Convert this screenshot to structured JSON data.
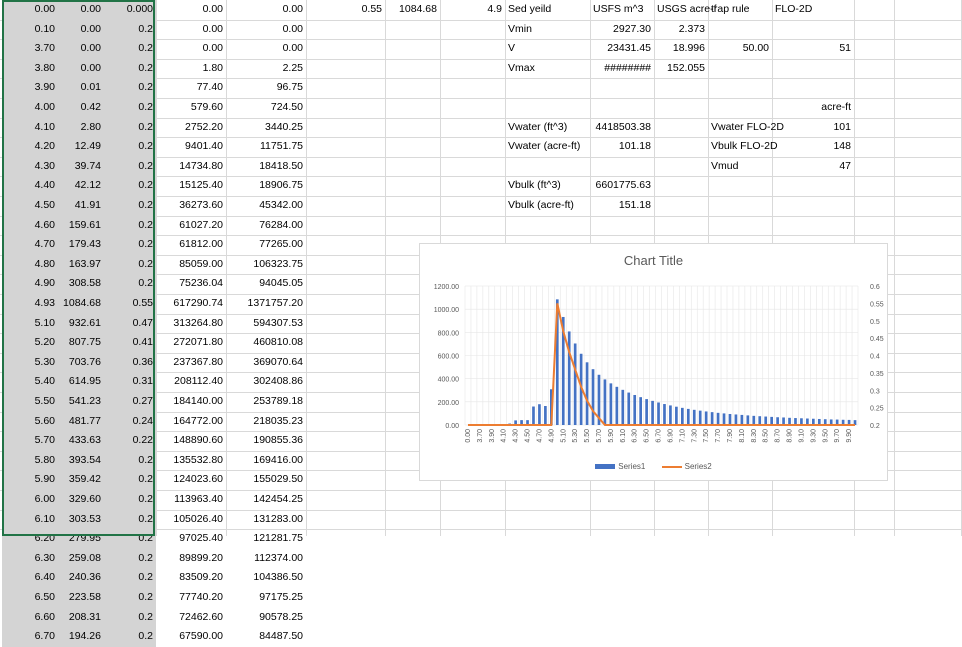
{
  "colors": {
    "series1": "#4472c4",
    "series2": "#ed7d31",
    "selection": "#d4d4d4",
    "selection_border": "#217346",
    "gridline": "#d9d9d9"
  },
  "columns_left": [
    [
      "0.00",
      "0.00",
      "0.000",
      "0.00",
      "0.00"
    ],
    [
      "0.10",
      "0.00",
      "0.2",
      "0.00",
      "0.00"
    ],
    [
      "3.70",
      "0.00",
      "0.2",
      "0.00",
      "0.00"
    ],
    [
      "3.80",
      "0.00",
      "0.2",
      "1.80",
      "2.25"
    ],
    [
      "3.90",
      "0.01",
      "0.2",
      "77.40",
      "96.75"
    ],
    [
      "4.00",
      "0.42",
      "0.2",
      "579.60",
      "724.50"
    ],
    [
      "4.10",
      "2.80",
      "0.2",
      "2752.20",
      "3440.25"
    ],
    [
      "4.20",
      "12.49",
      "0.2",
      "9401.40",
      "11751.75"
    ],
    [
      "4.30",
      "39.74",
      "0.2",
      "14734.80",
      "18418.50"
    ],
    [
      "4.40",
      "42.12",
      "0.2",
      "15125.40",
      "18906.75"
    ],
    [
      "4.50",
      "41.91",
      "0.2",
      "36273.60",
      "45342.00"
    ],
    [
      "4.60",
      "159.61",
      "0.2",
      "61027.20",
      "76284.00"
    ],
    [
      "4.70",
      "179.43",
      "0.2",
      "61812.00",
      "77265.00"
    ],
    [
      "4.80",
      "163.97",
      "0.2",
      "85059.00",
      "106323.75"
    ],
    [
      "4.90",
      "308.58",
      "0.2",
      "75236.04",
      "94045.05"
    ],
    [
      "4.93",
      "1084.68",
      "0.55",
      "617290.74",
      "1371757.20"
    ],
    [
      "5.10",
      "932.61",
      "0.47",
      "313264.80",
      "594307.53"
    ],
    [
      "5.20",
      "807.75",
      "0.41",
      "272071.80",
      "460810.08"
    ],
    [
      "5.30",
      "703.76",
      "0.36",
      "237367.80",
      "369070.64"
    ],
    [
      "5.40",
      "614.95",
      "0.31",
      "208112.40",
      "302408.86"
    ],
    [
      "5.50",
      "541.23",
      "0.27",
      "184140.00",
      "253789.18"
    ],
    [
      "5.60",
      "481.77",
      "0.24",
      "164772.00",
      "218035.23"
    ],
    [
      "5.70",
      "433.63",
      "0.22",
      "148890.60",
      "190855.36"
    ],
    [
      "5.80",
      "393.54",
      "0.2",
      "135532.80",
      "169416.00"
    ],
    [
      "5.90",
      "359.42",
      "0.2",
      "124023.60",
      "155029.50"
    ],
    [
      "6.00",
      "329.60",
      "0.2",
      "113963.40",
      "142454.25"
    ],
    [
      "6.10",
      "303.53",
      "0.2",
      "105026.40",
      "131283.00"
    ],
    [
      "6.20",
      "279.95",
      "0.2",
      "97025.40",
      "121281.75"
    ],
    [
      "6.30",
      "259.08",
      "0.2",
      "89899.20",
      "112374.00"
    ],
    [
      "6.40",
      "240.36",
      "0.2",
      "83509.20",
      "104386.50"
    ],
    [
      "6.50",
      "223.58",
      "0.2",
      "77740.20",
      "97175.25"
    ],
    [
      "6.60",
      "208.31",
      "0.2",
      "72462.60",
      "90578.25"
    ],
    [
      "6.70",
      "194.26",
      "0.2",
      "67590.00",
      "84487.50"
    ]
  ],
  "right_area": {
    "row0": {
      "a": "0.55",
      "b": "1084.68",
      "c": "4.9",
      "d": "Sed yeild",
      "e": "USFS m^3",
      "f": "USGS acre-f",
      "g": "trap rule",
      "h": "FLO-2D"
    },
    "vmin": {
      "label": "Vmin",
      "usfs": "2927.30",
      "usgs": "2.373"
    },
    "v": {
      "label": "V",
      "usfs": "23431.45",
      "usgs": "18.996",
      "trap": "50.00",
      "flo": "51"
    },
    "vmax": {
      "label": "Vmax",
      "usfs": "########",
      "usgs": "152.055"
    },
    "acre_ft": "acre-ft",
    "vwater_ft3": {
      "label": "Vwater (ft^3)",
      "value": "4418503.38"
    },
    "vwater_acre": {
      "label": "Vwater (acre-ft)",
      "value": "101.18"
    },
    "vbulk_ft3": {
      "label": "Vbulk (ft^3)",
      "value": "6601775.63"
    },
    "vbulk_acre": {
      "label": "Vbulk (acre-ft)",
      "value": "151.18"
    },
    "flo_vwater": {
      "label": "Vwater FLO-2D",
      "value": "101"
    },
    "flo_vbulk": {
      "label": "Vbulk FLO-2D",
      "value": "148"
    },
    "flo_vmud": {
      "label": "Vmud",
      "value": "47"
    }
  },
  "chart_data": {
    "type": "bar",
    "title": "Chart Title",
    "xlabel": "",
    "ylabel": "",
    "ylim": [
      0,
      1200
    ],
    "y2lim": [
      0.2,
      0.6
    ],
    "y_ticks": [
      "1200.00",
      "1000.00",
      "800.00",
      "600.00",
      "400.00",
      "200.00",
      "0.00"
    ],
    "y2_ticks": [
      "0.6",
      "0.55",
      "0.5",
      "0.45",
      "0.4",
      "0.35",
      "0.3",
      "0.25",
      "0.2"
    ],
    "x_tick_labels": [
      "0.00",
      "3.70",
      "3.90",
      "4.10",
      "4.30",
      "4.50",
      "4.70",
      "4.90",
      "5.10",
      "5.30",
      "5.50",
      "5.70",
      "5.90",
      "6.10",
      "6.30",
      "6.50",
      "6.70",
      "6.90",
      "7.10",
      "7.30",
      "7.50",
      "7.70",
      "7.90",
      "8.10",
      "8.30",
      "8.50",
      "8.70",
      "8.90",
      "9.10",
      "9.30",
      "9.50",
      "9.70",
      "9.90"
    ],
    "legend_position": "bottom",
    "series": [
      {
        "name": "Series1",
        "kind": "bar",
        "values": [
          0,
          0,
          0,
          0,
          0.01,
          0.42,
          2.8,
          12.49,
          39.74,
          42.12,
          41.91,
          159.61,
          179.43,
          163.97,
          308.58,
          1084.68,
          932.61,
          807.75,
          703.76,
          614.95,
          541.23,
          481.77,
          433.63,
          393.54,
          359.42,
          329.6,
          303.53,
          279.95,
          259.08,
          240.36,
          223.58,
          208.31,
          194.26,
          181,
          169,
          158,
          148,
          139,
          131,
          124,
          117,
          111,
          105,
          100,
          95,
          91,
          87,
          83,
          79,
          76,
          73,
          70,
          67,
          65,
          62,
          60,
          58,
          56,
          54,
          52,
          50,
          48,
          47,
          45,
          44,
          42
        ]
      },
      {
        "name": "Series2",
        "kind": "line",
        "axis": "secondary",
        "values": [
          0.2,
          0.2,
          0.2,
          0.2,
          0.2,
          0.2,
          0.2,
          0.2,
          0.2,
          0.2,
          0.2,
          0.2,
          0.2,
          0.2,
          0.2,
          0.55,
          0.47,
          0.41,
          0.36,
          0.31,
          0.27,
          0.24,
          0.22,
          0.2,
          0.2,
          0.2,
          0.2,
          0.2,
          0.2,
          0.2,
          0.2,
          0.2,
          0.2,
          0.2,
          0.2,
          0.2,
          0.2,
          0.2,
          0.2,
          0.2,
          0.2,
          0.2,
          0.2,
          0.2,
          0.2,
          0.2,
          0.2,
          0.2,
          0.2,
          0.2,
          0.2,
          0.2,
          0.2,
          0.2,
          0.2,
          0.2,
          0.2,
          0.2,
          0.2,
          0.2,
          0.2,
          0.2,
          0.2,
          0.2,
          0.2,
          0.2
        ]
      }
    ]
  }
}
